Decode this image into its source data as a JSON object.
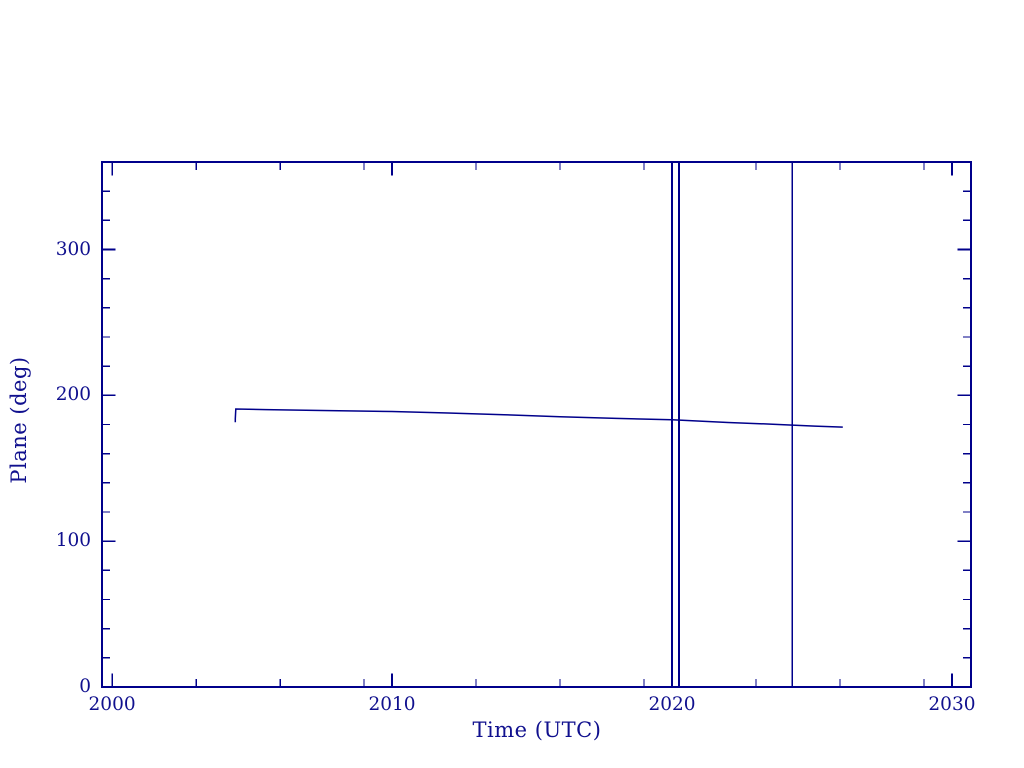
{
  "figure": {
    "background": "#ffffff",
    "axis_color": "#00008b",
    "text_color": "#10108e"
  },
  "chart_data": {
    "type": "line",
    "title": "",
    "xlabel": "Time (UTC)",
    "ylabel": "Plane (deg)",
    "xlim": [
      1999.64,
      2030.68
    ],
    "ylim": [
      0,
      360
    ],
    "grid": "off",
    "legend": "none",
    "x_major_ticks": [
      2000,
      2010,
      2020,
      2030
    ],
    "x_major_tick_labels": [
      "2000",
      "2010",
      "2020",
      "2030"
    ],
    "x_minor_ticks": [
      2003,
      2006,
      2009,
      2013,
      2016,
      2019,
      2023,
      2026,
      2029
    ],
    "y_major_ticks": [
      0,
      100,
      200,
      300
    ],
    "y_major_tick_labels": [
      "0",
      "100",
      "200",
      "300"
    ],
    "y_minor_ticks": [
      20,
      40,
      60,
      80,
      120,
      140,
      160,
      180,
      220,
      240,
      260,
      280,
      320,
      340
    ],
    "series": [
      {
        "name": "plane-angle",
        "color": "#00008b",
        "points": [
          [
            2004.4,
            181.5
          ],
          [
            2004.4,
            184.0
          ],
          [
            2004.42,
            190.6
          ],
          [
            2005.5,
            190.2
          ],
          [
            2007.5,
            189.6
          ],
          [
            2010.0,
            188.9
          ],
          [
            2012.0,
            187.9
          ],
          [
            2014.0,
            186.7
          ],
          [
            2016.0,
            185.3
          ],
          [
            2018.0,
            184.2
          ],
          [
            2020.0,
            183.3
          ],
          [
            2021.0,
            182.3
          ],
          [
            2022.0,
            181.4
          ],
          [
            2023.6,
            180.2
          ],
          [
            2025.1,
            178.9
          ],
          [
            2026.1,
            178.2
          ]
        ]
      }
    ],
    "vertical_lines": [
      {
        "name": "event-line-1",
        "x": 2020.0
      },
      {
        "name": "event-line-2",
        "x": 2020.25
      },
      {
        "name": "event-line-3",
        "x": 2024.3
      }
    ]
  }
}
